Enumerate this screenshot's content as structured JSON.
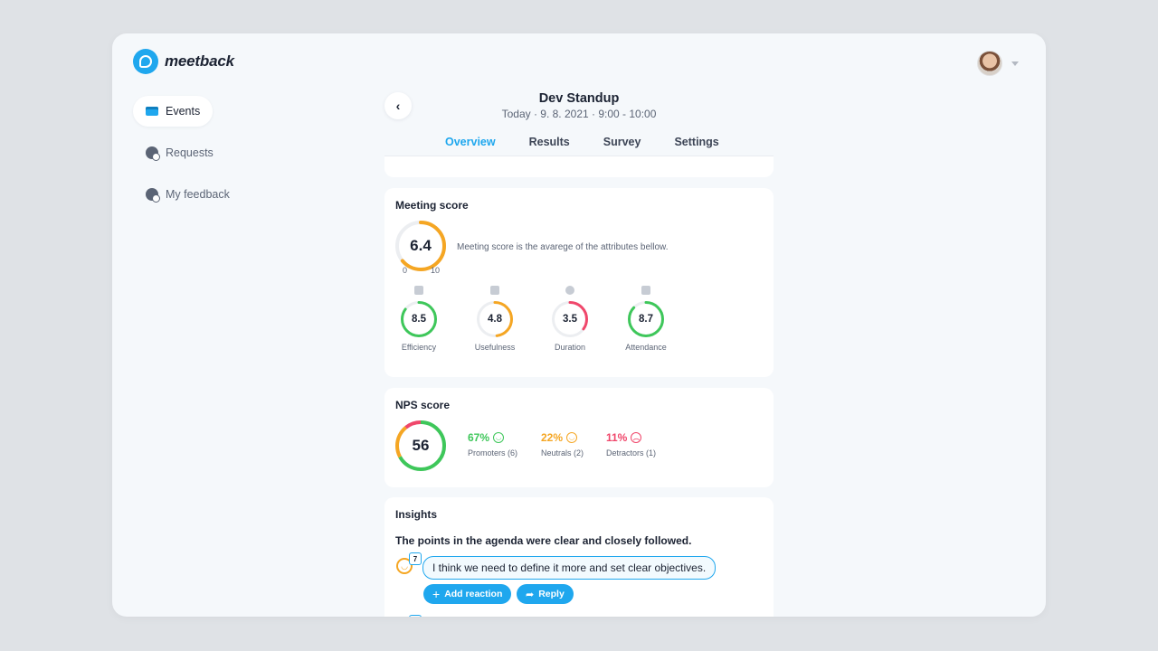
{
  "brand": {
    "name": "meetback",
    "accent": "#1fa7ee"
  },
  "nav": {
    "items": [
      {
        "label": "Events",
        "icon": "calendar-icon",
        "active": true
      },
      {
        "label": "Requests",
        "icon": "person-check-icon",
        "active": false
      },
      {
        "label": "My feedback",
        "icon": "person-check-icon",
        "active": false
      }
    ]
  },
  "event": {
    "title": "Dev Standup",
    "subtitle": "Today · 9. 8. 2021 · 9:00 - 10:00"
  },
  "tabs": [
    {
      "label": "Overview",
      "active": true
    },
    {
      "label": "Results",
      "active": false
    },
    {
      "label": "Survey",
      "active": false
    },
    {
      "label": "Settings",
      "active": false
    }
  ],
  "meeting_score": {
    "title": "Meeting score",
    "value": "6.4",
    "fraction": 0.64,
    "min": "0",
    "max": "10",
    "description": "Meeting score is the avarege of the attributes bellow.",
    "attributes": [
      {
        "label": "Efficiency",
        "value": "8.5",
        "fraction": 0.85,
        "color": "#3ec75a",
        "icon": "bar-chart-icon"
      },
      {
        "label": "Usefulness",
        "value": "4.8",
        "fraction": 0.48,
        "color": "#f5a623",
        "icon": "thumbs-up-icon"
      },
      {
        "label": "Duration",
        "value": "3.5",
        "fraction": 0.35,
        "color": "#f0476b",
        "icon": "clock-icon"
      },
      {
        "label": "Attendance",
        "value": "8.7",
        "fraction": 0.87,
        "color": "#3ec75a",
        "icon": "people-icon"
      }
    ],
    "color": "#f5a623"
  },
  "nps": {
    "title": "NPS score",
    "value": "56",
    "segments": [
      {
        "fraction": 0.67,
        "color": "#3ec75a"
      },
      {
        "fraction": 0.22,
        "color": "#f5a623"
      },
      {
        "fraction": 0.11,
        "color": "#f0476b"
      }
    ],
    "stats": [
      {
        "pct": "67%",
        "label": "Promoters (6)",
        "color": "#3ec75a",
        "face": "☺"
      },
      {
        "pct": "22%",
        "label": "Neutrals (2)",
        "color": "#f5a623",
        "face": "☺"
      },
      {
        "pct": "11%",
        "label": "Detractors (1)",
        "color": "#f0476b",
        "face": "☹"
      }
    ]
  },
  "insights": {
    "title": "Insights",
    "question": "The points in the agenda were clear and closely followed.",
    "badge_count": "7",
    "comment": "I think we need to define it more and set clear objectives.",
    "add_reaction_label": "Add reaction",
    "reply_label": "Reply"
  }
}
